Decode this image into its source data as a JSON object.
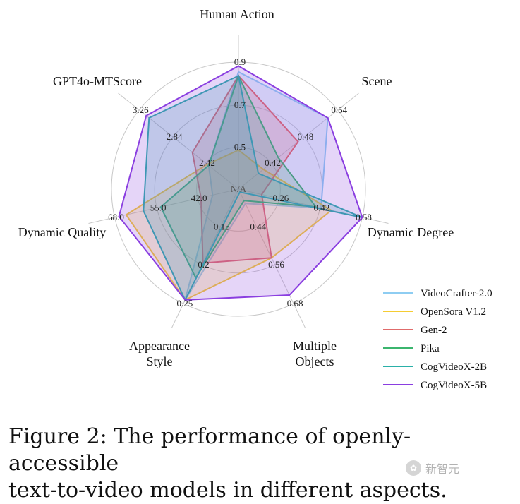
{
  "chart_data": {
    "type": "radar",
    "title": "",
    "axes": [
      {
        "name": "Human Action",
        "lines": [
          "Human Action"
        ],
        "ticks": [
          "0.5",
          "0.7",
          "0.9"
        ],
        "range": [
          0.3,
          0.95
        ]
      },
      {
        "name": "Scene",
        "lines": [
          "Scene"
        ],
        "ticks": [
          "0.42",
          "0.48",
          "0.54"
        ],
        "range": [
          0.36,
          0.56
        ]
      },
      {
        "name": "Dynamic Degree",
        "lines": [
          "Dynamic Degree"
        ],
        "ticks": [
          "0.26",
          "0.42",
          "0.58"
        ],
        "range": [
          0.1,
          0.58
        ]
      },
      {
        "name": "Multiple Objects",
        "lines": [
          "Multiple",
          "Objects"
        ],
        "ticks": [
          "0.44",
          "0.56",
          "0.68"
        ],
        "range": [
          0.32,
          0.72
        ]
      },
      {
        "name": "Appearance Style",
        "lines": [
          "Appearance",
          "Style"
        ],
        "ticks": [
          "0.15",
          "0.2",
          "0.25"
        ],
        "range": [
          0.1,
          0.255
        ]
      },
      {
        "name": "Dynamic Quality",
        "lines": [
          "Dynamic Quality"
        ],
        "ticks": [
          "42.0",
          "55.0",
          "68.0"
        ],
        "range": [
          29.0,
          72.0
        ]
      },
      {
        "name": "GPT4o-MTScore",
        "lines": [
          "GPT4o-MTScore"
        ],
        "ticks": [
          "2.42",
          "2.84",
          "3.26"
        ],
        "range": [
          2.0,
          3.4
        ]
      }
    ],
    "center_label": "N/A",
    "series": [
      {
        "name": "VideoCrafter-2.0",
        "color": "#8ecdf2",
        "values": [
          0.9,
          0.54,
          0.42,
          0.37,
          0.25,
          38.0,
          2.42
        ]
      },
      {
        "name": "OpenSora V1.2",
        "color": "#f5cc33",
        "values": [
          0.5,
          0.41,
          0.46,
          0.56,
          0.25,
          68.0,
          2.44
        ]
      },
      {
        "name": "Gen-2",
        "color": "#e06b6b",
        "values": [
          0.88,
          0.48,
          0.19,
          0.56,
          0.2,
          42.0,
          2.65
        ]
      },
      {
        "name": "Pika",
        "color": "#3bb56e",
        "values": [
          0.88,
          0.44,
          0.4,
          0.36,
          0.22,
          56.0,
          2.42
        ]
      },
      {
        "name": "CogVideoX-2B",
        "color": "#2ab0a8",
        "values": [
          0.88,
          0.4,
          0.58,
          0.33,
          0.25,
          62.0,
          3.26
        ]
      },
      {
        "name": "CogVideoX-5B",
        "color": "#8a3ee0",
        "values": [
          0.93,
          0.54,
          0.58,
          0.69,
          0.25,
          70.5,
          3.3
        ]
      }
    ],
    "legend_position": "bottom-right",
    "grid": true
  },
  "caption": {
    "line1": "Figure 2: The performance of openly-accessible",
    "line2": "text-to-video models in different aspects."
  },
  "watermark": {
    "text": "新智元"
  }
}
